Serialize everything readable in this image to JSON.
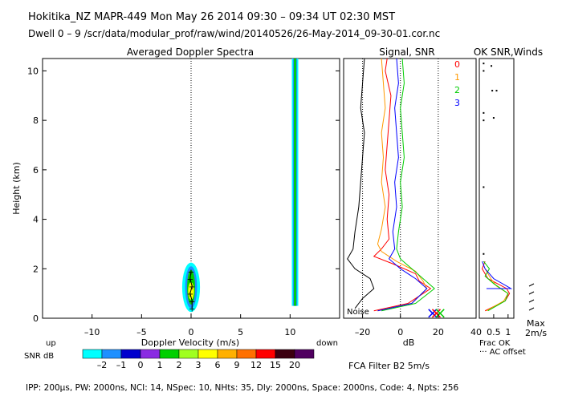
{
  "header": {
    "line1": "Hokitika_NZ   MAPR-449   Mon May 26 2014  09:30 – 09:34 UT 02:30 MST",
    "line2": "Dwell   0 –   9    /scr/data/modular_prof/raw/wind/20140526/26-May-2014_09-30-01.cor.nc"
  },
  "footer": {
    "params": "IPP: 200µs,  PW: 2000ns,  NCI:  14,  NSpec: 10, NHts: 35,  Dly: 2000ns,  Space: 2000ns,  Code: 4,  Npts: 256",
    "fca": "FCA Filter B2   5m/s"
  },
  "colorbar": {
    "label_up": "up",
    "label_down": "down",
    "label_snr": "SNR dB",
    "ticks": [
      "–2",
      "–1",
      "0",
      "1",
      "2",
      "3",
      "6",
      "9",
      "12",
      "15",
      "20"
    ],
    "colors": [
      "#00ffff",
      "#1e90ff",
      "#0000cd",
      "#8a2be2",
      "#00d000",
      "#a0ff20",
      "#ffff00",
      "#ffb000",
      "#ff7000",
      "#ff0000",
      "#3c0010",
      "#500060"
    ]
  },
  "chart_data": [
    {
      "type": "heatmap",
      "title": "Averaged Doppler Spectra",
      "xlabel": "Doppler Velocity (m/s)",
      "ylabel": "Height (km)",
      "xlim": [
        -15,
        15
      ],
      "ylim": [
        0,
        10.5
      ],
      "x_ticks": [
        "–10",
        "–5",
        "0",
        "5",
        "10"
      ],
      "y_ticks": [
        "0",
        "2",
        "4",
        "6",
        "8",
        "10"
      ],
      "peak_trace": [
        [
          0.1,
          0.4
        ],
        [
          0.1,
          0.7
        ],
        [
          -0.1,
          1.0
        ],
        [
          0.1,
          1.3
        ],
        [
          -0.1,
          1.6
        ],
        [
          0.0,
          1.9
        ]
      ],
      "blobs": [
        {
          "x": 0,
          "y": 1.25,
          "rx": 0.9,
          "ry": 1.0,
          "color": "#00ffff"
        },
        {
          "x": 0,
          "y": 1.25,
          "rx": 0.6,
          "ry": 0.85,
          "color": "#1e90ff"
        },
        {
          "x": 0,
          "y": 1.25,
          "rx": 0.4,
          "ry": 0.7,
          "color": "#00d000"
        },
        {
          "x": 0,
          "y": 1.1,
          "rx": 0.3,
          "ry": 0.35,
          "color": "#ffff00"
        }
      ],
      "band": {
        "x": 10.5,
        "y0": 0.5,
        "y1": 10.5,
        "colors": [
          "#00ffff",
          "#1e90ff",
          "#00d000"
        ]
      }
    },
    {
      "type": "line",
      "title": "Signal, SNR",
      "xlabel": "dB",
      "xlim": [
        -30,
        40
      ],
      "ylim": [
        0,
        10.5
      ],
      "x_ticks": [
        "–20",
        "0",
        "20",
        "40"
      ],
      "noise_label": "Noise",
      "legend_labels": [
        "0",
        "1",
        "2",
        "3"
      ],
      "noise_trace": {
        "color": "#000000",
        "points": [
          [
            -24,
            0.4
          ],
          [
            -20,
            0.8
          ],
          [
            -14,
            1.2
          ],
          [
            -16,
            1.6
          ],
          [
            -24,
            2.0
          ],
          [
            -28,
            2.4
          ],
          [
            -25,
            2.8
          ],
          [
            -24,
            3.5
          ],
          [
            -22,
            4.5
          ],
          [
            -21,
            5.5
          ],
          [
            -20,
            6.5
          ],
          [
            -19,
            7.5
          ],
          [
            -21,
            8.5
          ],
          [
            -20,
            9.5
          ],
          [
            -19,
            10.5
          ]
        ]
      },
      "series": [
        {
          "name": "0",
          "color": "#ff0000",
          "points": [
            [
              -14,
              0.3
            ],
            [
              4,
              0.6
            ],
            [
              16,
              1.2
            ],
            [
              10,
              1.5
            ],
            [
              8,
              1.8
            ],
            [
              -4,
              2.2
            ],
            [
              -14,
              2.5
            ],
            [
              -10,
              2.8
            ],
            [
              -6,
              3.2
            ],
            [
              -7,
              4.0
            ],
            [
              -6,
              5.0
            ],
            [
              -8,
              6.0
            ],
            [
              -7,
              7.0
            ],
            [
              -6,
              8.0
            ],
            [
              -5,
              9.0
            ],
            [
              -8,
              10.0
            ],
            [
              -7,
              10.5
            ]
          ]
        },
        {
          "name": "1",
          "color": "#ff9900",
          "points": [
            [
              -12,
              0.3
            ],
            [
              6,
              0.6
            ],
            [
              14,
              1.2
            ],
            [
              12,
              1.5
            ],
            [
              8,
              1.9
            ],
            [
              -2,
              2.3
            ],
            [
              -10,
              2.7
            ],
            [
              -12,
              3.0
            ],
            [
              -10,
              3.6
            ],
            [
              -8,
              4.5
            ],
            [
              -10,
              5.5
            ],
            [
              -9,
              6.5
            ],
            [
              -10,
              7.5
            ],
            [
              -8,
              8.5
            ],
            [
              -9,
              9.5
            ],
            [
              -10,
              10.5
            ]
          ]
        },
        {
          "name": "2",
          "color": "#00cc00",
          "points": [
            [
              -10,
              0.3
            ],
            [
              8,
              0.6
            ],
            [
              18,
              1.2
            ],
            [
              12,
              1.6
            ],
            [
              6,
              2.0
            ],
            [
              0,
              2.4
            ],
            [
              -2,
              2.8
            ],
            [
              -1,
              3.5
            ],
            [
              1,
              4.5
            ],
            [
              0,
              5.5
            ],
            [
              2,
              6.5
            ],
            [
              1,
              7.5
            ],
            [
              0,
              8.5
            ],
            [
              2,
              9.5
            ],
            [
              1,
              10.5
            ]
          ]
        },
        {
          "name": "3",
          "color": "#0000ff",
          "points": [
            [
              -12,
              0.3
            ],
            [
              6,
              0.6
            ],
            [
              14,
              1.2
            ],
            [
              8,
              1.6
            ],
            [
              0,
              2.0
            ],
            [
              -6,
              2.4
            ],
            [
              -3,
              2.8
            ],
            [
              -4,
              3.5
            ],
            [
              -2,
              4.5
            ],
            [
              -3,
              5.5
            ],
            [
              -1,
              6.5
            ],
            [
              -2,
              7.5
            ],
            [
              -3,
              8.5
            ],
            [
              -1,
              9.5
            ],
            [
              -2,
              10.5
            ]
          ]
        }
      ]
    },
    {
      "type": "line",
      "title": "OK SNR,Winds",
      "xlabel": "Frac OK",
      "xlim": [
        0,
        1.2
      ],
      "ylim": [
        0,
        10.5
      ],
      "x_ticks": [
        "0.5",
        "1"
      ],
      "ac_label": "··· AC offset",
      "max_label": "Max",
      "max_value_label": "2m/s",
      "series": [
        {
          "name": "0",
          "color": "#ff0000",
          "points": [
            [
              0.2,
              0.3
            ],
            [
              0.9,
              0.7
            ],
            [
              1.05,
              1.0
            ],
            [
              0.95,
              1.2
            ],
            [
              0.3,
              1.6
            ],
            [
              0.1,
              2.0
            ],
            [
              0.2,
              2.3
            ]
          ]
        },
        {
          "name": "1",
          "color": "#ff9900",
          "points": [
            [
              0.25,
              0.3
            ],
            [
              0.85,
              0.7
            ],
            [
              1.0,
              1.0
            ],
            [
              0.6,
              1.3
            ],
            [
              0.4,
              1.6
            ],
            [
              0.2,
              2.0
            ]
          ]
        },
        {
          "name": "2",
          "color": "#00cc00",
          "points": [
            [
              0.3,
              0.3
            ],
            [
              0.9,
              0.7
            ],
            [
              1.0,
              1.0
            ],
            [
              0.5,
              1.4
            ],
            [
              0.2,
              1.7
            ],
            [
              0.35,
              2.0
            ],
            [
              0.15,
              2.3
            ]
          ]
        },
        {
          "name": "3",
          "color": "#0000ff",
          "points": [
            [
              0.25,
              1.2
            ],
            [
              1.1,
              1.2
            ],
            [
              0.5,
              1.6
            ],
            [
              0.2,
              2.0
            ],
            [
              0.1,
              2.3
            ]
          ]
        }
      ],
      "ac_dots": [
        [
          0.15,
          10.3
        ],
        [
          0.15,
          10.0
        ],
        [
          0.15,
          8.3
        ],
        [
          0.15,
          8.0
        ],
        [
          0.15,
          5.3
        ],
        [
          0.15,
          2.6
        ]
      ],
      "wind_dots": [
        [
          0.42,
          10.2
        ],
        [
          0.45,
          9.2
        ],
        [
          0.6,
          9.2
        ],
        [
          0.5,
          8.1
        ]
      ]
    }
  ]
}
